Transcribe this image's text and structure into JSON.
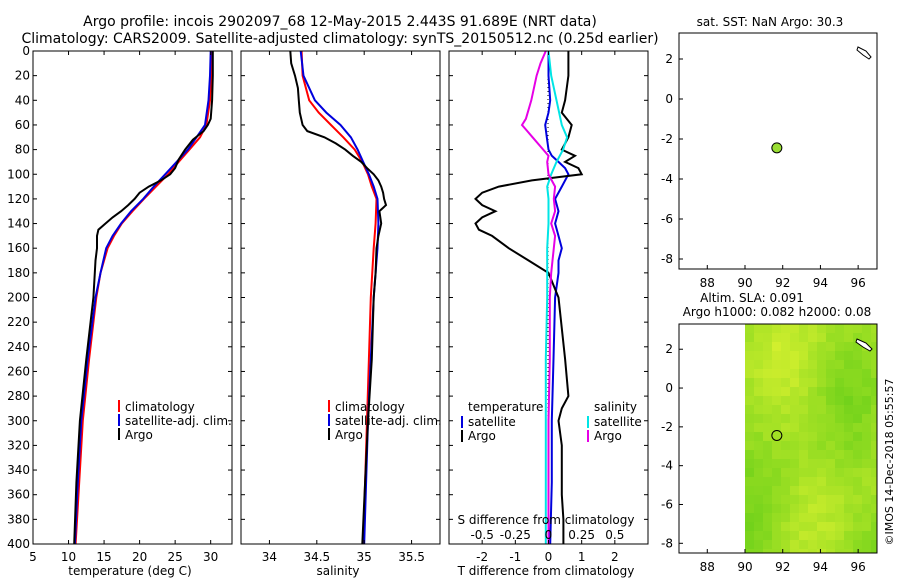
{
  "header": {
    "title_line1": "Argo profile: incois 2902097_68 12-May-2015 2.443S 91.689E (NRT data)",
    "title_line2": "Climatology: CARS2009. Satellite-adjusted climatology: synTS_20150512.nc (0.25d earlier)"
  },
  "colors": {
    "climatology": "#ff0000",
    "satellite": "#0000dd",
    "argo": "#000000",
    "sat_salinity": "#00e5e5",
    "argo_salinity": "#e600e6",
    "map_point": "#99dd33"
  },
  "chart_data": [
    {
      "id": "temperature-panel",
      "type": "line",
      "xlabel": "temperature (deg C)",
      "ylabel": "",
      "xlim": [
        5,
        33
      ],
      "ylim": [
        400,
        0
      ],
      "xticks": [
        5,
        10,
        15,
        20,
        25,
        30
      ],
      "yticks": [
        0,
        20,
        40,
        60,
        80,
        100,
        120,
        140,
        160,
        180,
        200,
        220,
        240,
        260,
        280,
        300,
        320,
        340,
        360,
        380,
        400
      ],
      "legend": [
        "climatology",
        "satellite-adj. clim.",
        "Argo"
      ],
      "series": [
        {
          "name": "climatology",
          "color_key": "climatology",
          "depth": [
            0,
            20,
            40,
            60,
            70,
            80,
            90,
            100,
            110,
            120,
            130,
            140,
            150,
            160,
            180,
            200,
            250,
            300,
            350,
            400
          ],
          "values": [
            30.2,
            30.1,
            29.9,
            29.4,
            28.5,
            27.0,
            25.5,
            24.0,
            22.3,
            20.6,
            19.0,
            17.5,
            16.4,
            15.5,
            14.5,
            13.9,
            12.9,
            12.0,
            11.5,
            11.0
          ]
        },
        {
          "name": "satellite-adj. clim.",
          "color_key": "satellite",
          "depth": [
            0,
            20,
            40,
            60,
            70,
            80,
            90,
            100,
            110,
            120,
            130,
            140,
            150,
            160,
            180,
            200,
            250,
            300,
            350,
            400
          ],
          "values": [
            30.0,
            29.9,
            29.7,
            29.2,
            28.0,
            26.8,
            25.2,
            23.6,
            22.0,
            20.5,
            18.8,
            17.4,
            16.2,
            15.3,
            14.5,
            13.8,
            12.7,
            11.8,
            11.3,
            10.9
          ]
        },
        {
          "name": "Argo",
          "color_key": "argo",
          "depth": [
            0,
            20,
            40,
            55,
            60,
            65,
            72,
            80,
            88,
            95,
            100,
            105,
            110,
            115,
            120,
            125,
            130,
            135,
            140,
            145,
            150,
            160,
            170,
            180,
            200,
            250,
            300,
            350,
            400
          ],
          "values": [
            30.3,
            30.3,
            30.2,
            30.0,
            29.6,
            29.0,
            27.5,
            26.4,
            25.5,
            25.0,
            24.3,
            23.0,
            21.3,
            20.0,
            19.3,
            18.4,
            17.4,
            16.2,
            15.2,
            14.2,
            14.0,
            14.0,
            13.8,
            13.7,
            13.5,
            12.5,
            11.6,
            11.1,
            10.8
          ]
        }
      ]
    },
    {
      "id": "salinity-panel",
      "type": "line",
      "xlabel": "salinity",
      "ylabel": "",
      "xlim": [
        33.7,
        35.8
      ],
      "ylim": [
        400,
        0
      ],
      "xticks": [
        34,
        34.5,
        35,
        35.5
      ],
      "xtick_labels": [
        "34",
        "34.5",
        "35",
        "35.5"
      ],
      "legend": [
        "climatology",
        "satellite-adj. clim.",
        "Argo"
      ],
      "series": [
        {
          "name": "climatology",
          "color_key": "climatology",
          "depth": [
            0,
            20,
            40,
            50,
            60,
            70,
            80,
            90,
            100,
            110,
            120,
            140,
            160,
            200,
            250,
            300,
            350,
            400
          ],
          "values": [
            34.34,
            34.35,
            34.42,
            34.52,
            34.65,
            34.78,
            34.9,
            34.98,
            35.04,
            35.08,
            35.13,
            35.12,
            35.1,
            35.07,
            35.05,
            35.03,
            35.01,
            34.99
          ]
        },
        {
          "name": "satellite-adj. clim.",
          "color_key": "satellite",
          "depth": [
            0,
            20,
            40,
            50,
            60,
            70,
            80,
            90,
            100,
            110,
            120,
            140,
            160,
            200,
            250,
            300,
            350,
            400
          ],
          "values": [
            34.33,
            34.36,
            34.48,
            34.6,
            34.75,
            34.86,
            34.93,
            34.99,
            35.05,
            35.1,
            35.14,
            35.15,
            35.14,
            35.1,
            35.07,
            35.04,
            35.02,
            35.0
          ]
        },
        {
          "name": "Argo",
          "color_key": "argo",
          "depth": [
            0,
            10,
            20,
            30,
            40,
            50,
            60,
            65,
            70,
            75,
            80,
            85,
            90,
            95,
            100,
            105,
            110,
            115,
            120,
            125,
            130,
            140,
            150,
            160,
            180,
            200,
            250,
            300,
            350,
            400
          ],
          "values": [
            34.22,
            34.23,
            34.27,
            34.3,
            34.31,
            34.32,
            34.35,
            34.4,
            34.58,
            34.7,
            34.8,
            34.88,
            34.97,
            35.03,
            35.1,
            35.15,
            35.18,
            35.2,
            35.21,
            35.23,
            35.16,
            35.18,
            35.15,
            35.13,
            35.12,
            35.1,
            35.08,
            35.04,
            35.01,
            34.98
          ]
        }
      ]
    },
    {
      "id": "difference-panel",
      "type": "line",
      "xlabel": "T difference from climatology",
      "xlabel_top": "S difference from climatology",
      "xlim": [
        -3,
        3
      ],
      "ylim": [
        400,
        0
      ],
      "xticks": [
        -2,
        -1,
        0,
        1,
        2
      ],
      "xtick_labels": [
        "-2",
        "-1",
        "0",
        "1",
        "2"
      ],
      "s_xticks": [
        -0.5,
        -0.25,
        0,
        0.25,
        0.5
      ],
      "s_xtick_labels": [
        "-0.5",
        "-0.25",
        "0",
        "0.25",
        "0.5"
      ],
      "legend_temperature_title": "temperature",
      "legend_salinity_title": "salinity",
      "legend_temperature": [
        "satellite",
        "Argo"
      ],
      "legend_salinity": [
        "satellite",
        "Argo"
      ],
      "series": [
        {
          "name": "T satellite",
          "color_key": "satellite",
          "depth": [
            0,
            20,
            40,
            50,
            60,
            70,
            80,
            85,
            90,
            95,
            100,
            110,
            120,
            130,
            140,
            150,
            160,
            170,
            180,
            200,
            250,
            300,
            350,
            400
          ],
          "values": [
            0.0,
            0.0,
            0.05,
            0.0,
            -0.1,
            -0.05,
            0.0,
            0.1,
            0.3,
            0.5,
            0.6,
            0.4,
            0.2,
            0.3,
            0.2,
            0.3,
            0.4,
            0.3,
            0.3,
            0.2,
            0.15,
            0.1,
            0.1,
            0.05
          ]
        },
        {
          "name": "T Argo",
          "color_key": "argo",
          "depth": [
            0,
            20,
            40,
            50,
            60,
            70,
            80,
            85,
            90,
            95,
            100,
            105,
            110,
            115,
            120,
            125,
            130,
            135,
            140,
            145,
            150,
            160,
            170,
            180,
            200,
            250,
            280,
            290,
            300,
            320,
            340,
            360,
            380,
            400
          ],
          "values": [
            0.6,
            0.6,
            0.5,
            0.4,
            0.7,
            0.6,
            0.4,
            0.8,
            0.5,
            0.9,
            1.0,
            -0.5,
            -1.5,
            -2.0,
            -2.2,
            -2.0,
            -1.6,
            -2.0,
            -2.2,
            -2.1,
            -1.7,
            -1.2,
            -0.6,
            0.0,
            0.3,
            0.5,
            0.6,
            0.4,
            0.3,
            0.4,
            0.4,
            0.4,
            0.45,
            0.45
          ]
        },
        {
          "name": "S satellite",
          "color_key": "sat_salinity",
          "depth": [
            0,
            20,
            40,
            60,
            70,
            80,
            90,
            100,
            110,
            120,
            140,
            160,
            200,
            250,
            300,
            350,
            400
          ],
          "values": [
            0.0,
            0.02,
            0.06,
            0.1,
            0.14,
            0.11,
            0.06,
            0.02,
            -0.01,
            0.0,
            0.0,
            -0.01,
            -0.01,
            -0.02,
            -0.02,
            -0.02,
            -0.02
          ]
        },
        {
          "name": "S Argo",
          "color_key": "argo_salinity",
          "depth": [
            0,
            10,
            20,
            40,
            55,
            60,
            65,
            70,
            80,
            85,
            90,
            100,
            110,
            120,
            130,
            140,
            150,
            160,
            170,
            180,
            200,
            250,
            300,
            350,
            400
          ],
          "values": [
            -0.02,
            -0.06,
            -0.09,
            -0.13,
            -0.17,
            -0.2,
            -0.16,
            -0.12,
            -0.04,
            0.0,
            -0.01,
            0.0,
            0.05,
            0.04,
            0.05,
            0.02,
            0.05,
            0.04,
            0.03,
            0.02,
            0.01,
            0.01,
            0.0,
            0.0,
            0.0
          ]
        }
      ]
    },
    {
      "id": "sst-map",
      "type": "scatter",
      "title": "sat. SST: NaN Argo: 30.3",
      "xlim": [
        86.5,
        97
      ],
      "ylim": [
        -8.5,
        3.3
      ],
      "xticks": [
        88,
        90,
        92,
        94,
        96
      ],
      "xtick_labels": [
        "88",
        "90",
        "92",
        "94",
        "96"
      ],
      "yticks": [
        2,
        0,
        -2,
        -4,
        -6,
        -8
      ],
      "ytick_labels": [
        "2",
        "0",
        "-2",
        "-4",
        "-6",
        "-8"
      ],
      "points": [
        {
          "x": 91.689,
          "y": -2.443
        }
      ]
    },
    {
      "id": "sla-map",
      "type": "heatmap",
      "title_line1": "Altim. SLA: 0.091",
      "title_line2": "Argo h1000: 0.082 h2000: 0.08",
      "xlim": [
        86.5,
        97
      ],
      "ylim": [
        -8.5,
        3.3
      ],
      "xticks": [
        88,
        90,
        92,
        94,
        96
      ],
      "xtick_labels": [
        "88",
        "90",
        "92",
        "94",
        "96"
      ],
      "yticks": [
        2,
        0,
        -2,
        -4,
        -6,
        -8
      ],
      "ytick_labels": [
        "2",
        "0",
        "-2",
        "-4",
        "-6",
        "-8"
      ],
      "field_xlim": [
        90,
        97
      ],
      "points": [
        {
          "x": 91.689,
          "y": -2.443
        }
      ]
    }
  ],
  "footer": {
    "credit": "©IMOS 14-Dec-2018 05:55:57"
  }
}
